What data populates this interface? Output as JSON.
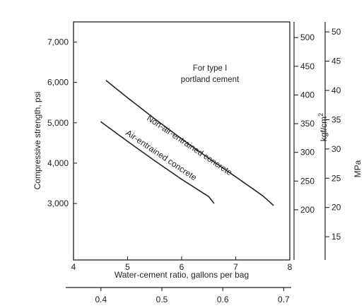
{
  "chart_data": {
    "type": "line",
    "title": "",
    "xlabel": "Water-cement ratio, gallons per bag",
    "xlim": [
      4,
      8
    ],
    "x_ticks": [
      4,
      5,
      6,
      7,
      8
    ],
    "x2_label": "",
    "x2_ticks": [
      0.4,
      0.5,
      0.6,
      0.7
    ],
    "x2_per_x": 0.08875,
    "ylabel": "Compressive strength, psi",
    "ylim": [
      1600,
      7500
    ],
    "y_ticks": [
      3000,
      4000,
      5000,
      6000,
      7000
    ],
    "y_tick_labels": [
      "3,000",
      "4,000",
      "5,000",
      "6,000",
      "7,000"
    ],
    "y_right1_label": "kgf/cm",
    "y_right1_sup": "2",
    "y_right1_ticks": [
      200,
      250,
      300,
      350,
      400,
      450,
      500
    ],
    "y_right1_psi_per_unit": 14.223,
    "y_right2_label": "MPa",
    "y_right2_ticks": [
      15,
      20,
      25,
      30,
      35,
      40,
      45,
      50
    ],
    "y_right2_psi_per_unit": 145.04,
    "annotation": [
      "For type I",
      "portland cement"
    ],
    "grid": false,
    "series": [
      {
        "name": "Non-air-entrained concrete",
        "x": [
          4.6,
          5.0,
          5.5,
          6.0,
          6.5,
          7.0,
          7.5,
          7.7
        ],
        "values": [
          6050,
          5620,
          5100,
          4600,
          4120,
          3660,
          3190,
          2950
        ]
      },
      {
        "name": "Air-entrained concrete",
        "x": [
          4.5,
          5.0,
          5.5,
          6.0,
          6.5,
          6.6
        ],
        "values": [
          5030,
          4540,
          4060,
          3600,
          3170,
          3000
        ]
      }
    ]
  }
}
